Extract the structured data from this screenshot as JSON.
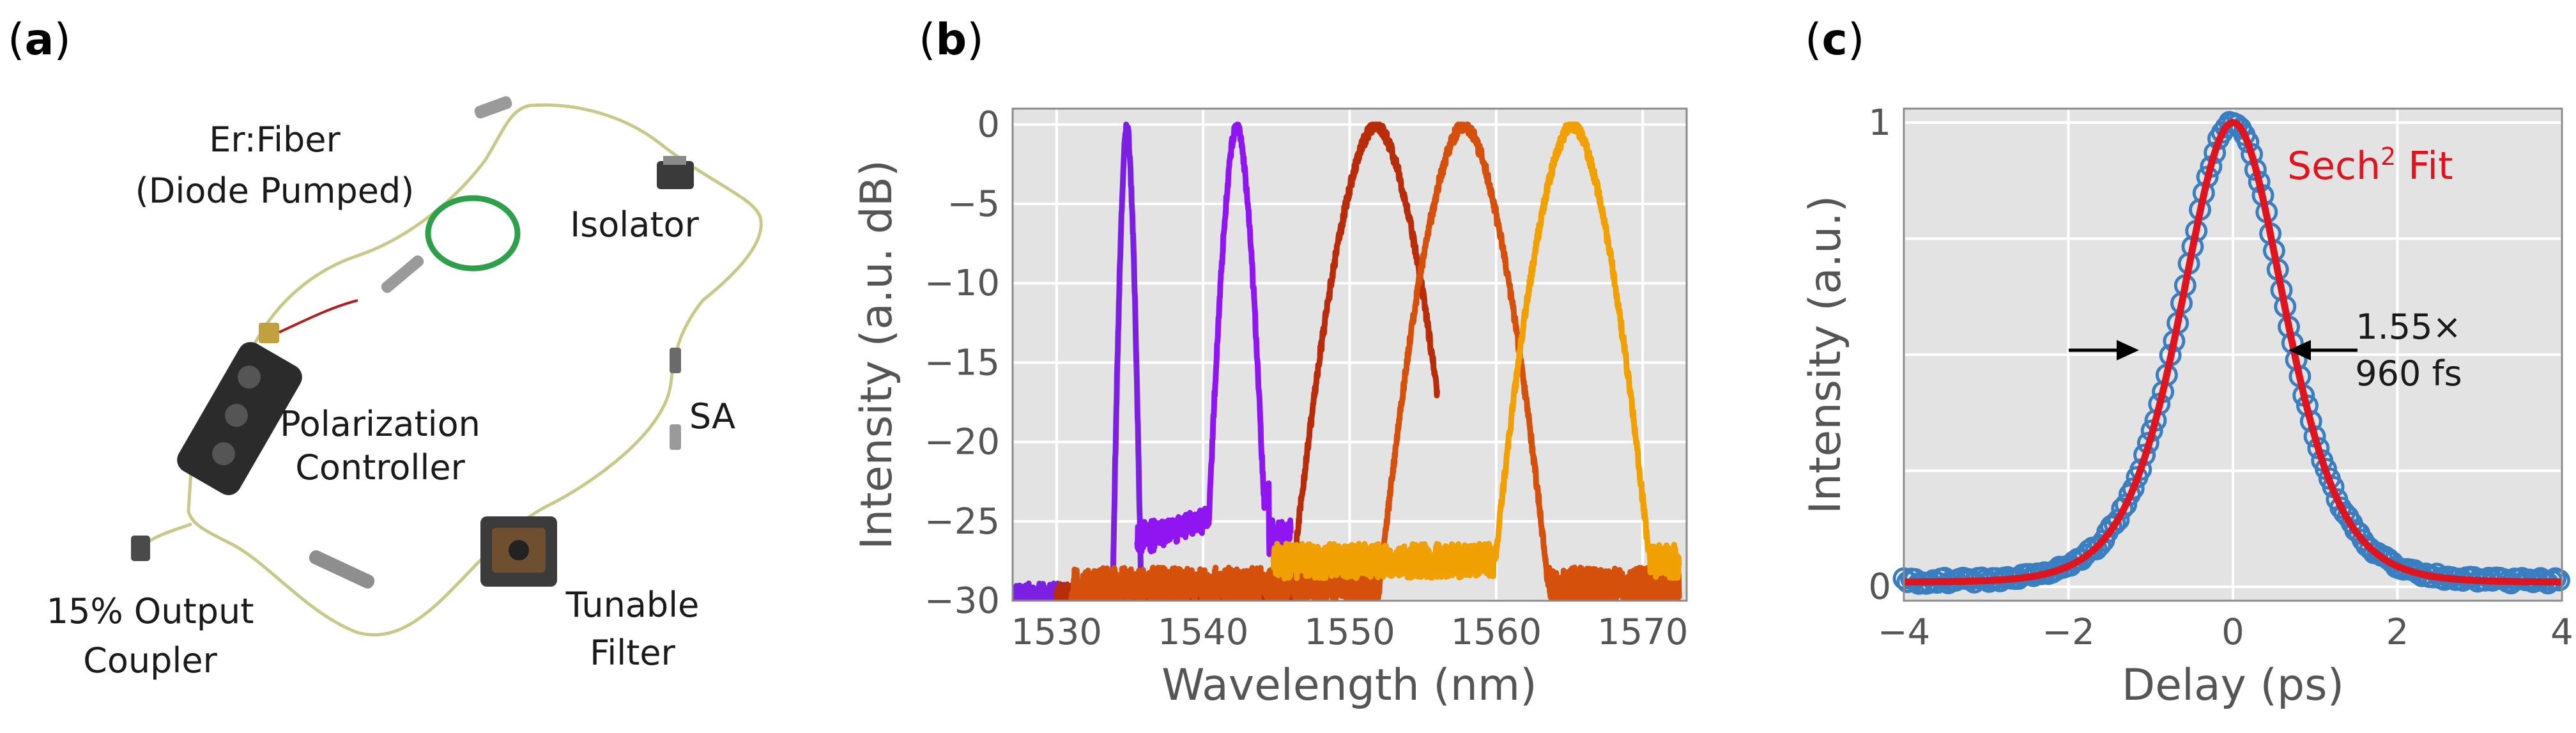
{
  "panels": {
    "a": {
      "label_open": "(",
      "label_letter": "a",
      "label_close": ")",
      "components": {
        "er_fiber_line1": "Er:Fiber",
        "er_fiber_line2": "(Diode Pumped)",
        "isolator": "Isolator",
        "polarization_line1": "Polarization",
        "polarization_line2": "Controller",
        "sa": "SA",
        "output_line1": "15% Output",
        "output_line2": "Coupler",
        "filter_line1": "Tunable",
        "filter_line2": "Filter"
      }
    },
    "b": {
      "label_open": "(",
      "label_letter": "b",
      "label_close": ")"
    },
    "c": {
      "label_open": "(",
      "label_letter": "c",
      "label_close": ")"
    }
  },
  "chart_data": [
    {
      "type": "line",
      "xlabel": "Wavelength (nm)",
      "ylabel": "Intensity (a.u. dB)",
      "xlim": [
        1527,
        1573
      ],
      "ylim": [
        -30,
        1
      ],
      "xticks": [
        1530,
        1540,
        1550,
        1560,
        1570
      ],
      "yticks": [
        0,
        -5,
        -10,
        -15,
        -20,
        -25,
        -30
      ],
      "grid": true,
      "series": [
        {
          "color": "#7b1fe0",
          "center": 1534.8,
          "fwhm": 0.6,
          "floor": -30,
          "range": [
            1527,
            1536.6
          ]
        },
        {
          "color": "#8f16f0",
          "center": 1542.3,
          "fwhm": 1.3,
          "floor": -26,
          "shoulder": [
            1535.5,
            1544.5
          ],
          "range": [
            1535.5,
            1546
          ]
        },
        {
          "color": "#b82c0a",
          "center": 1551.8,
          "fwhm": 3.6,
          "floor": -30,
          "range": [
            1530,
            1556
          ]
        },
        {
          "color": "#d5500a",
          "center": 1557.8,
          "fwhm": 3.6,
          "floor": -29,
          "range": [
            1531,
            1572.5
          ]
        },
        {
          "color": "#f0a000",
          "center": 1565.2,
          "fwhm": 3.4,
          "floor": -27.5,
          "range": [
            1544.8,
            1572.5
          ]
        }
      ]
    },
    {
      "type": "scatter",
      "xlabel": "Delay (ps)",
      "ylabel": "Intensity (a.u.)",
      "xlim": [
        -4,
        4
      ],
      "ylim": [
        -0.03,
        1.03
      ],
      "xticks": [
        -4,
        -2,
        0,
        2,
        4
      ],
      "yticks": [
        0,
        1
      ],
      "grid": true,
      "series": [
        {
          "kind": "data",
          "color": "#3a7ec2",
          "fwhm_ps": 1.49
        },
        {
          "kind": "fit",
          "color": "#e0141e",
          "fwhm_ps": 1.49
        }
      ],
      "fit_label_main": "Sech",
      "fit_label_sup": "2",
      "fit_label_tail": " Fit",
      "arrow_label_line1": "1.55×",
      "arrow_label_line2": "960 fs"
    }
  ]
}
